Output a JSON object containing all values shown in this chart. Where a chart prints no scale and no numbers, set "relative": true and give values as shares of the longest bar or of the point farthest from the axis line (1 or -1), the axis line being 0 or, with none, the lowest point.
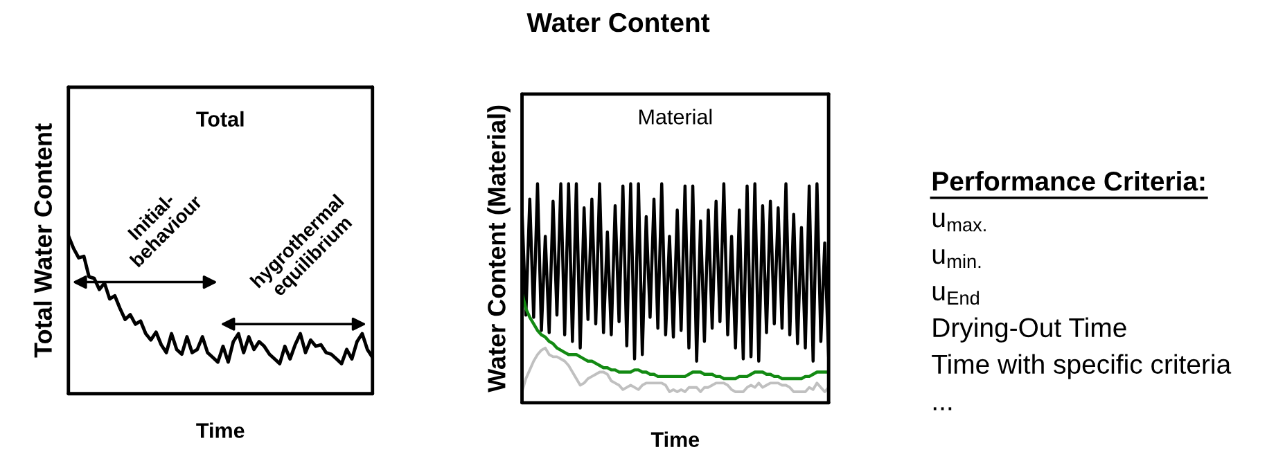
{
  "chart_data": [
    {
      "type": "line",
      "subtitle": "Total",
      "xlabel": "Time",
      "ylabel": "Total Water Content",
      "relative": true,
      "annotations": [
        "Initial-\nbehaviour",
        "hygrothermal\nequilibrium"
      ],
      "categories": [
        null,
        null,
        null,
        null,
        null,
        null,
        null,
        null,
        null,
        null,
        null,
        null,
        null,
        null,
        null,
        null,
        null,
        null,
        null,
        null,
        null,
        null,
        null,
        null,
        null,
        null,
        null,
        null,
        null,
        null,
        null,
        null,
        null,
        null,
        null,
        null,
        null,
        null,
        null,
        null,
        null,
        null,
        null,
        null,
        null,
        null,
        null,
        null,
        null,
        null,
        null,
        null,
        null,
        null,
        null,
        null,
        null,
        null,
        null,
        null
      ],
      "series": [
        {
          "color": "#000000",
          "values": [
            1.0,
            0.92,
            0.86,
            0.87,
            0.74,
            0.73,
            0.66,
            0.7,
            0.6,
            0.62,
            0.54,
            0.47,
            0.5,
            0.44,
            0.46,
            0.38,
            0.34,
            0.39,
            0.31,
            0.26,
            0.38,
            0.28,
            0.25,
            0.36,
            0.26,
            0.28,
            0.36,
            0.26,
            0.23,
            0.2,
            0.3,
            0.2,
            0.33,
            0.38,
            0.26,
            0.36,
            0.28,
            0.33,
            0.3,
            0.25,
            0.22,
            0.19,
            0.3,
            0.22,
            0.31,
            0.38,
            0.26,
            0.34,
            0.3,
            0.31,
            0.26,
            0.25,
            0.22,
            0.19,
            0.28,
            0.22,
            0.33,
            0.38,
            0.28,
            0.23
          ]
        }
      ]
    },
    {
      "type": "line",
      "title": "Water Content",
      "subtitle": "Material",
      "xlabel": "Time",
      "ylabel": "Water Content (Material)",
      "relative": true,
      "categories": [
        null,
        null,
        null,
        null,
        null,
        null,
        null,
        null,
        null,
        null,
        null,
        null,
        null,
        null,
        null,
        null,
        null,
        null,
        null,
        null,
        null,
        null,
        null,
        null,
        null,
        null,
        null,
        null,
        null,
        null,
        null,
        null,
        null,
        null,
        null,
        null,
        null,
        null,
        null,
        null,
        null,
        null,
        null,
        null,
        null,
        null,
        null,
        null,
        null,
        null,
        null,
        null,
        null,
        null,
        null,
        null,
        null,
        null,
        null,
        null,
        null,
        null,
        null,
        null,
        null,
        null,
        null,
        null,
        null,
        null,
        null,
        null,
        null,
        null,
        null,
        null,
        null,
        null,
        null,
        null
      ],
      "series": [
        {
          "color": "#000000",
          "values": [
            0.88,
            0.4,
            0.93,
            0.39,
            1.0,
            0.33,
            0.76,
            0.32,
            0.92,
            0.4,
            1.0,
            0.31,
            1.0,
            0.28,
            1.0,
            0.25,
            0.89,
            0.38,
            0.93,
            0.36,
            1.0,
            0.32,
            0.78,
            0.31,
            0.9,
            0.37,
            0.99,
            0.26,
            1.0,
            0.2,
            1.0,
            0.22,
            0.85,
            0.39,
            0.93,
            0.34,
            1.0,
            0.31,
            0.76,
            0.3,
            0.88,
            0.33,
            0.99,
            0.25,
            0.99,
            0.19,
            0.83,
            0.28,
            0.88,
            0.34,
            0.92,
            0.37,
            1.0,
            0.31,
            0.76,
            0.25,
            0.88,
            0.2,
            0.99,
            0.21,
            1.0,
            0.19,
            0.9,
            0.32,
            0.92,
            0.36,
            0.89,
            0.34,
            1.0,
            0.31,
            0.86,
            0.27,
            0.8,
            0.25,
            0.99,
            0.19,
            1.0,
            0.28,
            0.73,
            0.21
          ]
        },
        {
          "color": "#138a13",
          "values": [
            0.5,
            0.43,
            0.39,
            0.36,
            0.33,
            0.31,
            0.3,
            0.28,
            0.27,
            0.25,
            0.24,
            0.23,
            0.22,
            0.22,
            0.22,
            0.21,
            0.2,
            0.19,
            0.19,
            0.18,
            0.17,
            0.16,
            0.16,
            0.15,
            0.15,
            0.14,
            0.14,
            0.14,
            0.14,
            0.15,
            0.15,
            0.14,
            0.14,
            0.13,
            0.13,
            0.12,
            0.12,
            0.12,
            0.12,
            0.12,
            0.12,
            0.12,
            0.12,
            0.13,
            0.14,
            0.14,
            0.14,
            0.13,
            0.13,
            0.13,
            0.12,
            0.12,
            0.11,
            0.11,
            0.11,
            0.11,
            0.12,
            0.12,
            0.12,
            0.13,
            0.14,
            0.14,
            0.14,
            0.13,
            0.13,
            0.12,
            0.12,
            0.11,
            0.11,
            0.11,
            0.11,
            0.11,
            0.11,
            0.12,
            0.12,
            0.13,
            0.14,
            0.14,
            0.14,
            0.14
          ]
        },
        {
          "color": "#c0c0c0",
          "values": [
            0.05,
            0.11,
            0.15,
            0.19,
            0.22,
            0.24,
            0.25,
            0.22,
            0.21,
            0.21,
            0.2,
            0.19,
            0.17,
            0.14,
            0.11,
            0.08,
            0.09,
            0.11,
            0.12,
            0.13,
            0.14,
            0.14,
            0.13,
            0.1,
            0.09,
            0.08,
            0.06,
            0.07,
            0.08,
            0.07,
            0.06,
            0.08,
            0.09,
            0.09,
            0.09,
            0.09,
            0.09,
            0.08,
            0.05,
            0.06,
            0.05,
            0.06,
            0.05,
            0.07,
            0.07,
            0.07,
            0.05,
            0.07,
            0.07,
            0.08,
            0.09,
            0.09,
            0.09,
            0.08,
            0.06,
            0.05,
            0.05,
            0.05,
            0.07,
            0.08,
            0.07,
            0.09,
            0.07,
            0.08,
            0.09,
            0.09,
            0.09,
            0.08,
            0.08,
            0.07,
            0.05,
            0.05,
            0.05,
            0.05,
            0.07,
            0.06,
            0.09,
            0.07,
            0.05,
            0.07
          ]
        }
      ]
    },
    {
      "type": "other",
      "title": "Performance Criteria:",
      "annotations": [
        "u$_{max.}$",
        "u$_{min.}$",
        "u$_{End}$",
        "Drying-Out Time",
        "Time with specific criteria",
        "..."
      ]
    }
  ]
}
